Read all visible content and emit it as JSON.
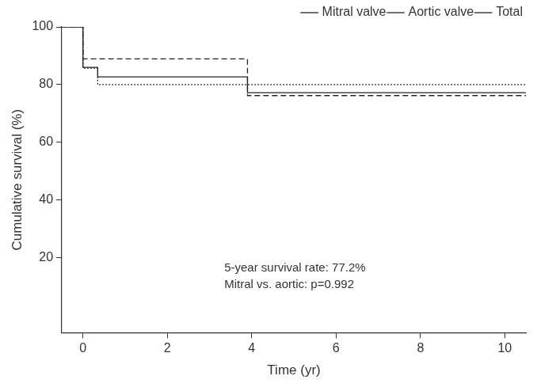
{
  "chart_data": {
    "type": "line",
    "x_label": "Time (yr)",
    "y_label": "Cumulative survival (%)",
    "xlim": [
      -0.5,
      10.5
    ],
    "xticks": [
      0,
      2,
      4,
      6,
      8,
      10
    ],
    "ylim": [
      -6,
      100
    ],
    "yticks": [
      20,
      40,
      60,
      80,
      100
    ],
    "grid": false,
    "legend": "top-right",
    "series": [
      {
        "name": "Mitral valve",
        "color": "#222222",
        "line_style": "dashed",
        "x": [
          -0.5,
          0,
          3.9,
          10.5
        ],
        "values": [
          100,
          88.9,
          76.2,
          76.2
        ]
      },
      {
        "name": "Aortic valve",
        "color": "#222222",
        "line_style": "dotted",
        "x": [
          -0.5,
          0,
          0.35,
          10.5
        ],
        "values": [
          100,
          85.7,
          80,
          80
        ]
      },
      {
        "name": "Total",
        "color": "#222222",
        "line_style": "solid",
        "x": [
          -0.5,
          0,
          0.35,
          3.9,
          10.5
        ],
        "values": [
          100,
          86,
          82.7,
          77.2,
          77.2
        ]
      }
    ],
    "annotations": [
      "5-year survival rate: 77.2%",
      "Mitral vs. aortic: p=0.992"
    ]
  }
}
